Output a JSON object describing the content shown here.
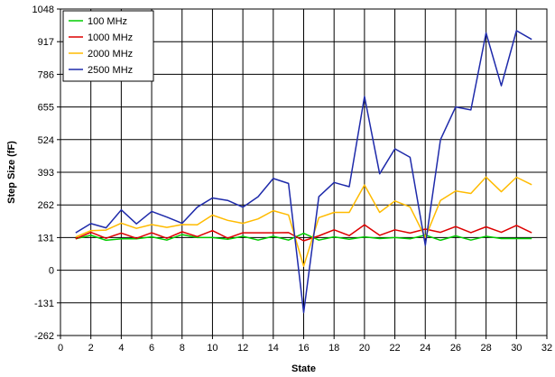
{
  "chart_data": {
    "type": "line",
    "xlabel": "State",
    "ylabel": "Step Size (fF)",
    "xlim": [
      0,
      32
    ],
    "ylim": [
      -262,
      1048
    ],
    "xticks": [
      0,
      2,
      4,
      6,
      8,
      10,
      12,
      14,
      16,
      18,
      20,
      22,
      24,
      26,
      28,
      30,
      32
    ],
    "yticks": [
      -262,
      -131,
      0,
      131,
      262,
      393,
      524,
      655,
      786,
      917,
      1048
    ],
    "grid": true,
    "legend_position": "top-left",
    "x": [
      1,
      2,
      3,
      4,
      5,
      6,
      7,
      8,
      9,
      10,
      11,
      12,
      13,
      14,
      15,
      16,
      17,
      18,
      19,
      20,
      21,
      22,
      23,
      24,
      25,
      26,
      27,
      28,
      29,
      30,
      31
    ],
    "series": [
      {
        "name": "100 MHz",
        "color": "#00cc00",
        "values": [
          126,
          140,
          120,
          126,
          126,
          134,
          121,
          143,
          131,
          131,
          124,
          136,
          121,
          136,
          121,
          148,
          121,
          134,
          124,
          134,
          127,
          131,
          126,
          141,
          120,
          138,
          121,
          136,
          127,
          127,
          127
        ]
      },
      {
        "name": "1000 MHz",
        "color": "#dd0000",
        "values": [
          126,
          152,
          128,
          149,
          128,
          150,
          128,
          154,
          135,
          159,
          129,
          150,
          150,
          150,
          151,
          118,
          138,
          162,
          139,
          182,
          140,
          162,
          149,
          165,
          152,
          175,
          151,
          174,
          152,
          180,
          150
        ]
      },
      {
        "name": "2000 MHz",
        "color": "#ffbb00",
        "values": [
          133,
          159,
          161,
          189,
          168,
          183,
          172,
          183,
          182,
          221,
          200,
          188,
          206,
          239,
          222,
          16,
          211,
          232,
          232,
          342,
          232,
          278,
          254,
          131,
          280,
          318,
          308,
          374,
          315,
          373,
          343
        ]
      },
      {
        "name": "2500 MHz",
        "color": "#1e2aaa",
        "values": [
          150,
          187,
          170,
          242,
          186,
          236,
          213,
          188,
          253,
          290,
          280,
          253,
          295,
          368,
          348,
          -170,
          295,
          352,
          335,
          697,
          387,
          487,
          453,
          100,
          524,
          655,
          643,
          952,
          740,
          961,
          926
        ]
      }
    ]
  }
}
